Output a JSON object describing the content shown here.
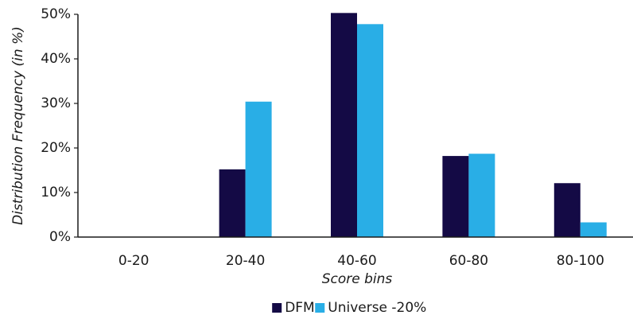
{
  "chart_data": {
    "type": "bar",
    "title": "",
    "xlabel": "Score bins",
    "ylabel": "Distribution Frequency (in %)",
    "categories": [
      "0-20",
      "20-40",
      "40-60",
      "60-80",
      "80-100"
    ],
    "ylim": [
      0,
      50
    ],
    "yticks": [
      0,
      10,
      20,
      30,
      40,
      50
    ],
    "ytick_labels": [
      "0%",
      "10%",
      "20%",
      "30%",
      "40%",
      "50%"
    ],
    "grid": false,
    "legend_position": "bottom",
    "series": [
      {
        "name": "DFM",
        "color": "#140a45",
        "values": [
          0,
          15.2,
          50.3,
          18.2,
          12.1
        ]
      },
      {
        "name": "Universe -20%",
        "color": "#29aee6",
        "values": [
          0,
          30.4,
          47.8,
          18.7,
          3.3
        ]
      }
    ]
  }
}
